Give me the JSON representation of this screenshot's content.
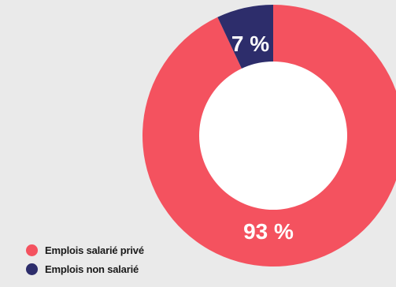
{
  "chart_data": {
    "type": "pie",
    "donut": true,
    "start_angle_deg": 0,
    "direction": "clockwise",
    "slices": [
      {
        "name": "Emplois salarié privé",
        "value": 93,
        "label": "93 %",
        "color": "#f4525f"
      },
      {
        "name": "Emplois non salarié",
        "value": 7,
        "label": "7 %",
        "color": "#2d2d6b"
      }
    ],
    "legend": {
      "position": "bottom-left",
      "items": [
        "Emplois salarié privé",
        "Emplois non salarié"
      ]
    }
  }
}
